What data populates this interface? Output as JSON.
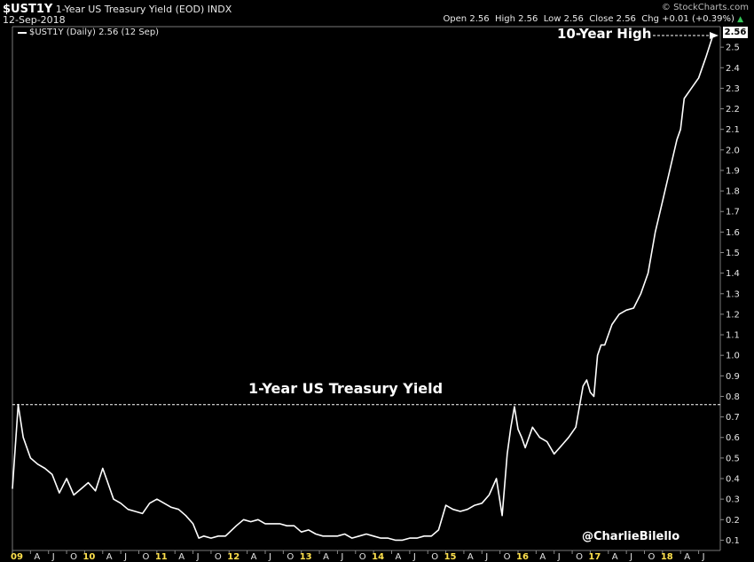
{
  "header": {
    "symbol": "$UST1Y",
    "title": "1-Year US Treasury Yield (EOD)",
    "exchange": "INDX",
    "date": "12-Sep-2018",
    "brand": "© StockCharts.com",
    "ohlc": "Open 2.56  High 2.56  Low 2.56  Close 2.56  Chg +0.01 (+0.39%)",
    "chg_arrow": "▲"
  },
  "legend": {
    "label": "$UST1Y (Daily) 2.56 (12 Sep)"
  },
  "price_tag": "2.56",
  "annotations": {
    "high_label": "10-Year High",
    "chart_title": "1-Year US Treasury Yield",
    "credit": "@CharlieBilello"
  },
  "colors": {
    "background": "#000000",
    "line": "#ffffff",
    "year_label": "#ffe14d",
    "up": "#34c759",
    "tag_bg": "#ffffff"
  },
  "chart_data": {
    "type": "line",
    "title": "1-Year US Treasury Yield",
    "series": [
      {
        "name": "$UST1Y (Daily)",
        "x": [
          2009.0,
          2009.08,
          2009.15,
          2009.25,
          2009.35,
          2009.45,
          2009.55,
          2009.65,
          2009.75,
          2009.85,
          2009.95,
          2010.05,
          2010.15,
          2010.25,
          2010.3,
          2010.4,
          2010.5,
          2010.6,
          2010.7,
          2010.8,
          2010.9,
          2011.0,
          2011.1,
          2011.2,
          2011.3,
          2011.4,
          2011.5,
          2011.58,
          2011.65,
          2011.75,
          2011.85,
          2011.95,
          2012.1,
          2012.2,
          2012.3,
          2012.4,
          2012.5,
          2012.6,
          2012.7,
          2012.8,
          2012.9,
          2013.0,
          2013.1,
          2013.2,
          2013.3,
          2013.4,
          2013.5,
          2013.6,
          2013.7,
          2013.8,
          2013.9,
          2014.0,
          2014.1,
          2014.2,
          2014.3,
          2014.4,
          2014.5,
          2014.6,
          2014.7,
          2014.8,
          2014.9,
          2015.0,
          2015.1,
          2015.2,
          2015.3,
          2015.4,
          2015.5,
          2015.6,
          2015.7,
          2015.78,
          2015.85,
          2015.9,
          2015.95,
          2016.0,
          2016.05,
          2016.1,
          2016.2,
          2016.3,
          2016.4,
          2016.5,
          2016.6,
          2016.7,
          2016.8,
          2016.85,
          2016.9,
          2016.95,
          2017.0,
          2017.05,
          2017.1,
          2017.15,
          2017.2,
          2017.3,
          2017.4,
          2017.5,
          2017.6,
          2017.7,
          2017.8,
          2017.9,
          2018.0,
          2018.1,
          2018.2,
          2018.25,
          2018.3,
          2018.4,
          2018.5,
          2018.6,
          2018.7
        ],
        "values": [
          0.35,
          0.76,
          0.6,
          0.5,
          0.47,
          0.45,
          0.42,
          0.33,
          0.4,
          0.32,
          0.35,
          0.38,
          0.34,
          0.45,
          0.4,
          0.3,
          0.28,
          0.25,
          0.24,
          0.23,
          0.28,
          0.3,
          0.28,
          0.26,
          0.25,
          0.22,
          0.18,
          0.11,
          0.12,
          0.11,
          0.12,
          0.12,
          0.17,
          0.2,
          0.19,
          0.2,
          0.18,
          0.18,
          0.18,
          0.17,
          0.17,
          0.14,
          0.15,
          0.13,
          0.12,
          0.12,
          0.12,
          0.13,
          0.11,
          0.12,
          0.13,
          0.12,
          0.11,
          0.11,
          0.1,
          0.1,
          0.11,
          0.11,
          0.12,
          0.12,
          0.15,
          0.27,
          0.25,
          0.24,
          0.25,
          0.27,
          0.28,
          0.32,
          0.4,
          0.22,
          0.52,
          0.65,
          0.75,
          0.64,
          0.6,
          0.55,
          0.65,
          0.6,
          0.58,
          0.52,
          0.56,
          0.6,
          0.65,
          0.75,
          0.85,
          0.88,
          0.82,
          0.8,
          1.0,
          1.05,
          1.05,
          1.15,
          1.2,
          1.22,
          1.23,
          1.3,
          1.4,
          1.6,
          1.75,
          1.9,
          2.05,
          2.1,
          2.25,
          2.3,
          2.35,
          2.45,
          2.56
        ]
      }
    ],
    "xlim": [
      2009.0,
      2018.8
    ],
    "ylim": [
      0.05,
      2.6
    ],
    "yticks": [
      0.1,
      0.2,
      0.3,
      0.4,
      0.5,
      0.6,
      0.7,
      0.8,
      0.9,
      1.0,
      1.1,
      1.2,
      1.3,
      1.4,
      1.5,
      1.6,
      1.7,
      1.8,
      1.9,
      2.0,
      2.1,
      2.2,
      2.3,
      2.4,
      2.5
    ],
    "ytick_labels": [
      "0.1",
      "0.2",
      "0.3",
      "0.4",
      "0.5",
      "0.6",
      "0.7",
      "0.8",
      "0.9",
      "1.0",
      "1.1",
      "1.2",
      "1.3",
      "1.4",
      "1.5",
      "1.6",
      "1.7",
      "1.8",
      "1.9",
      "2.0",
      "2.1",
      "2.2",
      "2.3",
      "2.4",
      "2.5"
    ],
    "xticks": [
      {
        "x": 2009.0,
        "label": "09",
        "year": true
      },
      {
        "x": 2009.25,
        "label": "A"
      },
      {
        "x": 2009.5,
        "label": "J"
      },
      {
        "x": 2009.75,
        "label": "O"
      },
      {
        "x": 2010.0,
        "label": "10",
        "year": true
      },
      {
        "x": 2010.25,
        "label": "A"
      },
      {
        "x": 2010.5,
        "label": "J"
      },
      {
        "x": 2010.75,
        "label": "O"
      },
      {
        "x": 2011.0,
        "label": "11",
        "year": true
      },
      {
        "x": 2011.25,
        "label": "A"
      },
      {
        "x": 2011.5,
        "label": "J"
      },
      {
        "x": 2011.75,
        "label": "O"
      },
      {
        "x": 2012.0,
        "label": "12",
        "year": true
      },
      {
        "x": 2012.25,
        "label": "A"
      },
      {
        "x": 2012.5,
        "label": "J"
      },
      {
        "x": 2012.75,
        "label": "O"
      },
      {
        "x": 2013.0,
        "label": "13",
        "year": true
      },
      {
        "x": 2013.25,
        "label": "A"
      },
      {
        "x": 2013.5,
        "label": "J"
      },
      {
        "x": 2013.75,
        "label": "O"
      },
      {
        "x": 2014.0,
        "label": "14",
        "year": true
      },
      {
        "x": 2014.25,
        "label": "A"
      },
      {
        "x": 2014.5,
        "label": "J"
      },
      {
        "x": 2014.75,
        "label": "O"
      },
      {
        "x": 2015.0,
        "label": "15",
        "year": true
      },
      {
        "x": 2015.25,
        "label": "A"
      },
      {
        "x": 2015.5,
        "label": "J"
      },
      {
        "x": 2015.75,
        "label": "O"
      },
      {
        "x": 2016.0,
        "label": "16",
        "year": true
      },
      {
        "x": 2016.25,
        "label": "A"
      },
      {
        "x": 2016.5,
        "label": "J"
      },
      {
        "x": 2016.75,
        "label": "O"
      },
      {
        "x": 2017.0,
        "label": "17",
        "year": true
      },
      {
        "x": 2017.25,
        "label": "A"
      },
      {
        "x": 2017.5,
        "label": "J"
      },
      {
        "x": 2017.75,
        "label": "O"
      },
      {
        "x": 2018.0,
        "label": "18",
        "year": true
      },
      {
        "x": 2018.25,
        "label": "A"
      },
      {
        "x": 2018.5,
        "label": "J"
      }
    ],
    "reference_line": {
      "y": 0.76,
      "style": "dashed"
    },
    "grid": false,
    "legend_position": "top-left"
  }
}
